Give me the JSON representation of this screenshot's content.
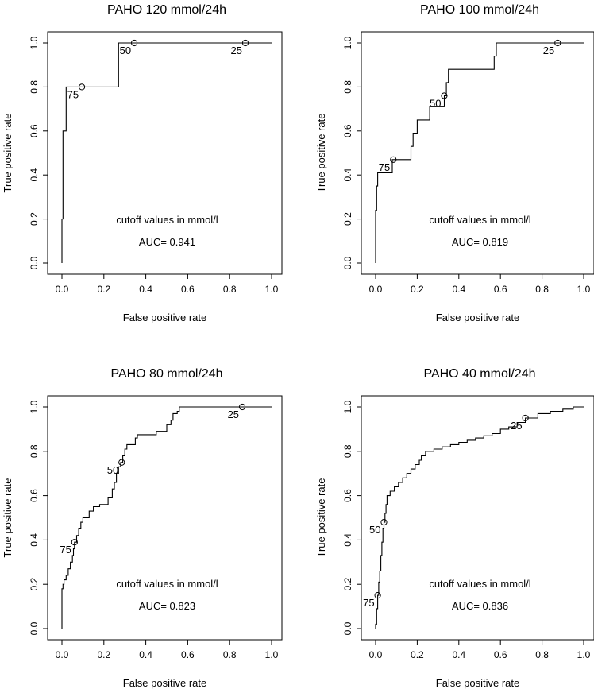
{
  "colors": {
    "background": "#ffffff",
    "ink": "#000000"
  },
  "chart_data": [
    {
      "type": "line",
      "title": "PAHO 120 mmol/24h",
      "xlabel": "False positive rate",
      "ylabel": "True positive rate",
      "xlim": [
        0,
        1
      ],
      "ylim": [
        0,
        1
      ],
      "xticks": [
        "0.0",
        "0.2",
        "0.4",
        "0.6",
        "0.8",
        "1.0"
      ],
      "yticks": [
        "0.0",
        "0.2",
        "0.4",
        "0.6",
        "0.8",
        "1.0"
      ],
      "note": "cutoff values in mmol/l",
      "auc_label": "AUC= 0.941",
      "roc": [
        [
          0,
          0
        ],
        [
          0,
          0.2
        ],
        [
          0.005,
          0.2
        ],
        [
          0.005,
          0.6
        ],
        [
          0.02,
          0.6
        ],
        [
          0.02,
          0.8
        ],
        [
          0.27,
          0.8
        ],
        [
          0.27,
          1.0
        ],
        [
          1.0,
          1.0
        ]
      ],
      "cutoffs": [
        {
          "label": "75",
          "x": 0.095,
          "y": 0.8,
          "pos": "bottom-left"
        },
        {
          "label": "50",
          "x": 0.345,
          "y": 1.0,
          "pos": "bottom-left"
        },
        {
          "label": "25",
          "x": 0.875,
          "y": 1.0,
          "pos": "bottom-left"
        }
      ]
    },
    {
      "type": "line",
      "title": "PAHO 100 mmol/24h",
      "xlabel": "False positive rate",
      "ylabel": "True positive rate",
      "xlim": [
        0,
        1
      ],
      "ylim": [
        0,
        1
      ],
      "xticks": [
        "0.0",
        "0.2",
        "0.4",
        "0.6",
        "0.8",
        "1.0"
      ],
      "yticks": [
        "0.0",
        "0.2",
        "0.4",
        "0.6",
        "0.8",
        "1.0"
      ],
      "note": "cutoff values in mmol/l",
      "auc_label": "AUC= 0.819",
      "roc": [
        [
          0,
          0
        ],
        [
          0,
          0.24
        ],
        [
          0.005,
          0.24
        ],
        [
          0.005,
          0.35
        ],
        [
          0.01,
          0.35
        ],
        [
          0.01,
          0.41
        ],
        [
          0.02,
          0.41
        ],
        [
          0.08,
          0.41
        ],
        [
          0.08,
          0.47
        ],
        [
          0.17,
          0.47
        ],
        [
          0.17,
          0.53
        ],
        [
          0.18,
          0.53
        ],
        [
          0.18,
          0.59
        ],
        [
          0.2,
          0.59
        ],
        [
          0.2,
          0.65
        ],
        [
          0.26,
          0.65
        ],
        [
          0.26,
          0.71
        ],
        [
          0.33,
          0.71
        ],
        [
          0.33,
          0.76
        ],
        [
          0.34,
          0.76
        ],
        [
          0.34,
          0.82
        ],
        [
          0.35,
          0.82
        ],
        [
          0.35,
          0.88
        ],
        [
          0.57,
          0.88
        ],
        [
          0.57,
          0.94
        ],
        [
          0.58,
          0.94
        ],
        [
          0.58,
          1.0
        ],
        [
          1.0,
          1.0
        ]
      ],
      "cutoffs": [
        {
          "label": "75",
          "x": 0.085,
          "y": 0.47,
          "pos": "bottom-left"
        },
        {
          "label": "50",
          "x": 0.33,
          "y": 0.76,
          "pos": "bottom-left"
        },
        {
          "label": "25",
          "x": 0.875,
          "y": 1.0,
          "pos": "bottom-left"
        }
      ]
    },
    {
      "type": "line",
      "title": "PAHO 80 mmol/24h",
      "xlabel": "False positive rate",
      "ylabel": "True positive rate",
      "xlim": [
        0,
        1
      ],
      "ylim": [
        0,
        1
      ],
      "xticks": [
        "0.0",
        "0.2",
        "0.4",
        "0.6",
        "0.8",
        "1.0"
      ],
      "yticks": [
        "0.0",
        "0.2",
        "0.4",
        "0.6",
        "0.8",
        "1.0"
      ],
      "note": "cutoff values in mmol/l",
      "auc_label": "AUC= 0.823",
      "roc": [
        [
          0,
          0
        ],
        [
          0,
          0.18
        ],
        [
          0.005,
          0.18
        ],
        [
          0.005,
          0.2
        ],
        [
          0.01,
          0.2
        ],
        [
          0.01,
          0.22
        ],
        [
          0.02,
          0.22
        ],
        [
          0.02,
          0.24
        ],
        [
          0.03,
          0.24
        ],
        [
          0.03,
          0.27
        ],
        [
          0.04,
          0.27
        ],
        [
          0.04,
          0.3
        ],
        [
          0.05,
          0.3
        ],
        [
          0.05,
          0.33
        ],
        [
          0.055,
          0.33
        ],
        [
          0.055,
          0.36
        ],
        [
          0.06,
          0.36
        ],
        [
          0.06,
          0.39
        ],
        [
          0.07,
          0.39
        ],
        [
          0.07,
          0.42
        ],
        [
          0.08,
          0.42
        ],
        [
          0.08,
          0.45
        ],
        [
          0.09,
          0.45
        ],
        [
          0.09,
          0.48
        ],
        [
          0.1,
          0.48
        ],
        [
          0.1,
          0.5
        ],
        [
          0.13,
          0.5
        ],
        [
          0.13,
          0.53
        ],
        [
          0.15,
          0.53
        ],
        [
          0.15,
          0.55
        ],
        [
          0.18,
          0.55
        ],
        [
          0.18,
          0.56
        ],
        [
          0.22,
          0.56
        ],
        [
          0.22,
          0.59
        ],
        [
          0.24,
          0.59
        ],
        [
          0.24,
          0.63
        ],
        [
          0.25,
          0.63
        ],
        [
          0.25,
          0.66
        ],
        [
          0.26,
          0.66
        ],
        [
          0.26,
          0.7
        ],
        [
          0.27,
          0.7
        ],
        [
          0.27,
          0.73
        ],
        [
          0.28,
          0.73
        ],
        [
          0.28,
          0.75
        ],
        [
          0.29,
          0.75
        ],
        [
          0.29,
          0.78
        ],
        [
          0.3,
          0.78
        ],
        [
          0.3,
          0.81
        ],
        [
          0.31,
          0.81
        ],
        [
          0.31,
          0.83
        ],
        [
          0.35,
          0.83
        ],
        [
          0.35,
          0.86
        ],
        [
          0.36,
          0.86
        ],
        [
          0.36,
          0.875
        ],
        [
          0.45,
          0.875
        ],
        [
          0.45,
          0.89
        ],
        [
          0.5,
          0.89
        ],
        [
          0.5,
          0.92
        ],
        [
          0.52,
          0.92
        ],
        [
          0.52,
          0.94
        ],
        [
          0.53,
          0.94
        ],
        [
          0.53,
          0.97
        ],
        [
          0.55,
          0.97
        ],
        [
          0.55,
          0.98
        ],
        [
          0.56,
          0.98
        ],
        [
          0.56,
          1.0
        ],
        [
          1.0,
          1.0
        ]
      ],
      "cutoffs": [
        {
          "label": "75",
          "x": 0.06,
          "y": 0.39,
          "pos": "bottom-left"
        },
        {
          "label": "50",
          "x": 0.285,
          "y": 0.75,
          "pos": "bottom-left"
        },
        {
          "label": "25",
          "x": 0.86,
          "y": 1.0,
          "pos": "bottom-left"
        }
      ]
    },
    {
      "type": "line",
      "title": "PAHO 40 mmol/24h",
      "xlabel": "False positive rate",
      "ylabel": "True positive rate",
      "xlim": [
        0,
        1
      ],
      "ylim": [
        0,
        1
      ],
      "xticks": [
        "0.0",
        "0.2",
        "0.4",
        "0.6",
        "0.8",
        "1.0"
      ],
      "yticks": [
        "0.0",
        "0.2",
        "0.4",
        "0.6",
        "0.8",
        "1.0"
      ],
      "note": "cutoff values in mmol/l",
      "auc_label": "AUC= 0.836",
      "roc": [
        [
          0,
          0
        ],
        [
          0,
          0.02
        ],
        [
          0.005,
          0.02
        ],
        [
          0.005,
          0.09
        ],
        [
          0.01,
          0.09
        ],
        [
          0.01,
          0.15
        ],
        [
          0.015,
          0.15
        ],
        [
          0.015,
          0.21
        ],
        [
          0.02,
          0.21
        ],
        [
          0.02,
          0.26
        ],
        [
          0.025,
          0.26
        ],
        [
          0.025,
          0.33
        ],
        [
          0.03,
          0.33
        ],
        [
          0.03,
          0.39
        ],
        [
          0.035,
          0.39
        ],
        [
          0.035,
          0.45
        ],
        [
          0.04,
          0.45
        ],
        [
          0.04,
          0.48
        ],
        [
          0.045,
          0.48
        ],
        [
          0.045,
          0.52
        ],
        [
          0.05,
          0.52
        ],
        [
          0.05,
          0.56
        ],
        [
          0.055,
          0.56
        ],
        [
          0.055,
          0.6
        ],
        [
          0.07,
          0.6
        ],
        [
          0.07,
          0.62
        ],
        [
          0.09,
          0.62
        ],
        [
          0.09,
          0.64
        ],
        [
          0.11,
          0.64
        ],
        [
          0.11,
          0.66
        ],
        [
          0.13,
          0.66
        ],
        [
          0.13,
          0.68
        ],
        [
          0.15,
          0.68
        ],
        [
          0.15,
          0.7
        ],
        [
          0.17,
          0.7
        ],
        [
          0.17,
          0.72
        ],
        [
          0.19,
          0.72
        ],
        [
          0.19,
          0.74
        ],
        [
          0.21,
          0.74
        ],
        [
          0.21,
          0.76
        ],
        [
          0.22,
          0.76
        ],
        [
          0.22,
          0.78
        ],
        [
          0.24,
          0.78
        ],
        [
          0.24,
          0.8
        ],
        [
          0.28,
          0.8
        ],
        [
          0.28,
          0.81
        ],
        [
          0.32,
          0.81
        ],
        [
          0.32,
          0.82
        ],
        [
          0.36,
          0.82
        ],
        [
          0.36,
          0.83
        ],
        [
          0.4,
          0.83
        ],
        [
          0.4,
          0.84
        ],
        [
          0.44,
          0.84
        ],
        [
          0.44,
          0.85
        ],
        [
          0.48,
          0.85
        ],
        [
          0.48,
          0.86
        ],
        [
          0.52,
          0.86
        ],
        [
          0.52,
          0.87
        ],
        [
          0.56,
          0.87
        ],
        [
          0.56,
          0.88
        ],
        [
          0.6,
          0.88
        ],
        [
          0.6,
          0.9
        ],
        [
          0.64,
          0.9
        ],
        [
          0.64,
          0.91
        ],
        [
          0.68,
          0.91
        ],
        [
          0.68,
          0.93
        ],
        [
          0.72,
          0.93
        ],
        [
          0.72,
          0.95
        ],
        [
          0.78,
          0.95
        ],
        [
          0.78,
          0.97
        ],
        [
          0.84,
          0.97
        ],
        [
          0.84,
          0.98
        ],
        [
          0.9,
          0.98
        ],
        [
          0.9,
          0.99
        ],
        [
          0.95,
          0.99
        ],
        [
          0.95,
          1.0
        ],
        [
          1.0,
          1.0
        ]
      ],
      "cutoffs": [
        {
          "label": "75",
          "x": 0.01,
          "y": 0.15,
          "pos": "bottom-left"
        },
        {
          "label": "50",
          "x": 0.04,
          "y": 0.48,
          "pos": "bottom-left"
        },
        {
          "label": "25",
          "x": 0.72,
          "y": 0.95,
          "pos": "bottom-left"
        }
      ]
    }
  ]
}
